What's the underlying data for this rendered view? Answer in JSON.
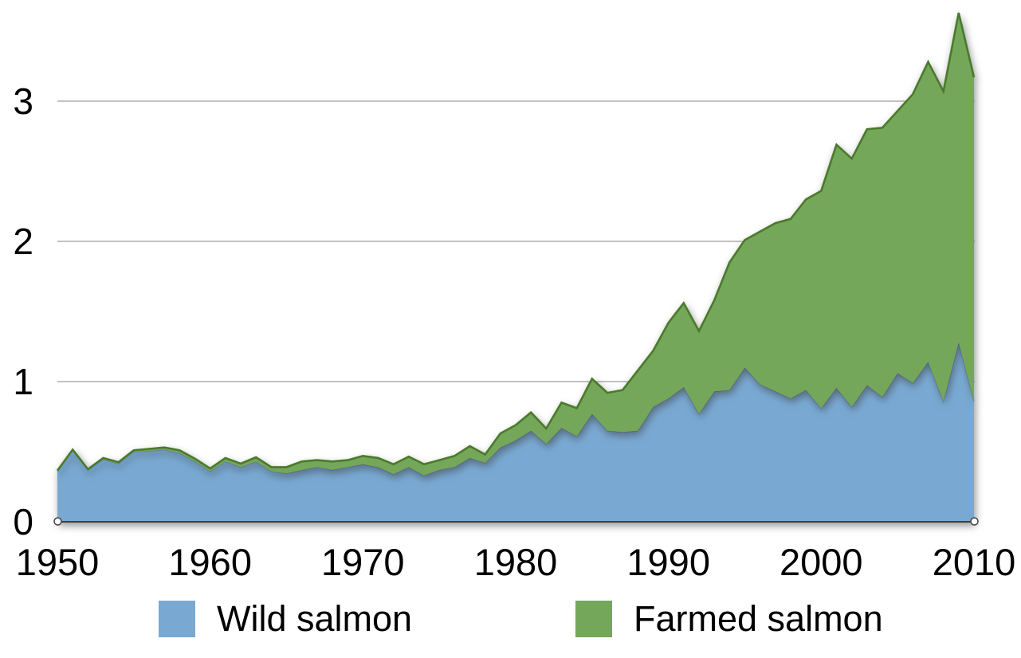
{
  "chart_data": {
    "type": "area",
    "stacked": true,
    "title": "",
    "xlabel": "",
    "ylabel": "",
    "x": [
      1950,
      1951,
      1952,
      1953,
      1954,
      1955,
      1956,
      1957,
      1958,
      1959,
      1960,
      1961,
      1962,
      1963,
      1964,
      1965,
      1966,
      1967,
      1968,
      1969,
      1970,
      1971,
      1972,
      1973,
      1974,
      1975,
      1976,
      1977,
      1978,
      1979,
      1980,
      1981,
      1982,
      1983,
      1984,
      1985,
      1986,
      1987,
      1988,
      1989,
      1990,
      1991,
      1992,
      1993,
      1994,
      1995,
      1996,
      1997,
      1998,
      1999,
      2000,
      2001,
      2002,
      2003,
      2004,
      2005,
      2006,
      2007,
      2008,
      2009,
      2010
    ],
    "series": [
      {
        "name": "Wild salmon",
        "fill_color": "#79a9d3",
        "edge_color": "rgba(70,100,135,0.45)",
        "edge_width": 1.6,
        "values": [
          0.36,
          0.51,
          0.37,
          0.445,
          0.415,
          0.5,
          0.505,
          0.515,
          0.49,
          0.43,
          0.36,
          0.43,
          0.39,
          0.43,
          0.36,
          0.345,
          0.37,
          0.39,
          0.37,
          0.39,
          0.41,
          0.39,
          0.34,
          0.39,
          0.33,
          0.37,
          0.39,
          0.455,
          0.42,
          0.53,
          0.58,
          0.65,
          0.555,
          0.67,
          0.61,
          0.77,
          0.65,
          0.64,
          0.65,
          0.82,
          0.88,
          0.96,
          0.77,
          0.93,
          0.94,
          1.1,
          0.98,
          0.93,
          0.88,
          0.94,
          0.81,
          0.955,
          0.82,
          0.975,
          0.89,
          1.06,
          0.99,
          1.14,
          0.86,
          1.28,
          0.86
        ]
      },
      {
        "name": "Farmed salmon",
        "fill_color": "#74a75a",
        "edge_color": "#4b7a2b",
        "edge_width": 2.6,
        "values": [
          0.005,
          0.005,
          0.005,
          0.01,
          0.01,
          0.01,
          0.015,
          0.015,
          0.02,
          0.02,
          0.02,
          0.025,
          0.025,
          0.03,
          0.03,
          0.045,
          0.06,
          0.05,
          0.06,
          0.05,
          0.06,
          0.065,
          0.07,
          0.075,
          0.08,
          0.07,
          0.08,
          0.085,
          0.06,
          0.1,
          0.11,
          0.13,
          0.11,
          0.18,
          0.2,
          0.25,
          0.27,
          0.3,
          0.43,
          0.4,
          0.54,
          0.6,
          0.59,
          0.65,
          0.91,
          0.91,
          1.09,
          1.2,
          1.28,
          1.36,
          1.55,
          1.735,
          1.77,
          1.825,
          1.92,
          1.87,
          2.06,
          2.14,
          2.21,
          2.35,
          2.31
        ]
      }
    ],
    "x_ticks": [
      "1950",
      "1960",
      "1970",
      "1980",
      "1990",
      "2000",
      "2010"
    ],
    "y_ticks": [
      "0",
      "1",
      "2",
      "3"
    ],
    "xlim": [
      1950,
      2010
    ],
    "ylim": [
      0,
      3.75
    ],
    "grid": "horizontal",
    "gridline_color": "#9c9c9c",
    "axis_line_color": "#3f3f3f",
    "endpoint_marker": "small-open-circle",
    "text_color": "#000000",
    "legend_position": "bottom"
  }
}
